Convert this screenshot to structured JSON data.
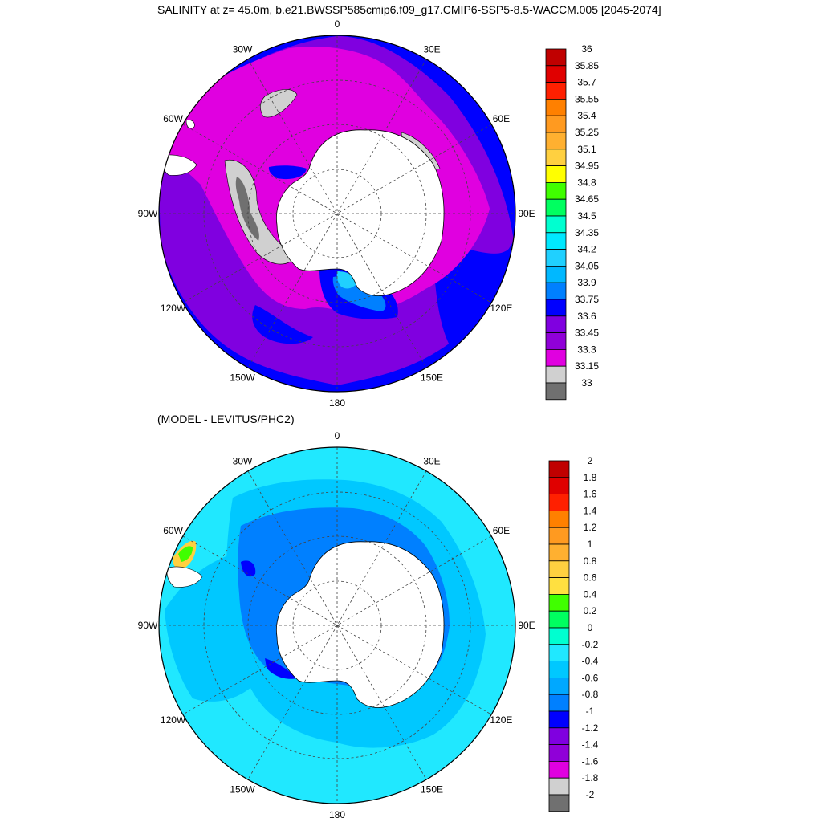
{
  "title": "SALINITY at z=  45.0m, b.e21.BWSSP585cmip6.f09_g17.CMIP6-SSP5-8.5-WACCM.005 [2045-2074]",
  "diff_title": "(MODEL - LEVITUS/PHC2)",
  "lon_labels": [
    "0",
    "30E",
    "60E",
    "90E",
    "120E",
    "150E",
    "180",
    "150W",
    "120W",
    "90W",
    "60W",
    "30W"
  ],
  "top_panel": {
    "colorbar": {
      "levels": [
        "36",
        "35.85",
        "35.7",
        "35.55",
        "35.4",
        "35.25",
        "35.1",
        "34.95",
        "34.8",
        "34.65",
        "34.5",
        "34.35",
        "34.2",
        "34.05",
        "33.9",
        "33.75",
        "33.6",
        "33.45",
        "33.3",
        "33.15",
        "33"
      ],
      "colors": [
        "#c00000",
        "#e00000",
        "#ff2000",
        "#ff8000",
        "#ff9a20",
        "#ffb030",
        "#ffd040",
        "#ffff00",
        "#40ff00",
        "#00ff60",
        "#00ffd0",
        "#00e8ff",
        "#20d0ff",
        "#00b8ff",
        "#0080ff",
        "#0000ff",
        "#8000e0",
        "#9000d8",
        "#e000e0",
        "#d0d0d0",
        "#707070"
      ]
    }
  },
  "bottom_panel": {
    "colorbar": {
      "levels": [
        "2",
        "1.8",
        "1.6",
        "1.4",
        "1.2",
        "1",
        "0.8",
        "0.6",
        "0.4",
        "0.2",
        "0",
        "-0.2",
        "-0.4",
        "-0.6",
        "-0.8",
        "-1",
        "-1.2",
        "-1.4",
        "-1.6",
        "-1.8",
        "-2"
      ],
      "colors": [
        "#c00000",
        "#e00000",
        "#ff2000",
        "#ff8000",
        "#ff9a20",
        "#ffb030",
        "#ffd040",
        "#ffe040",
        "#40ff00",
        "#00ff60",
        "#00ffd0",
        "#20e8ff",
        "#00c8ff",
        "#00a8ff",
        "#0080ff",
        "#0000ff",
        "#8000e0",
        "#9000d8",
        "#e000e0",
        "#d0d0d0",
        "#707070"
      ]
    }
  }
}
